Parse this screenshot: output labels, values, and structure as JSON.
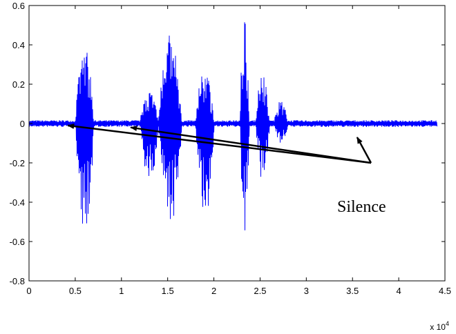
{
  "chart_data": {
    "type": "line",
    "title": "",
    "xlabel": "",
    "ylabel": "",
    "xlim": [
      0,
      45000
    ],
    "ylim": [
      -0.8,
      0.6
    ],
    "x_ticks": [
      0,
      5000,
      10000,
      15000,
      20000,
      25000,
      30000,
      35000,
      40000,
      45000
    ],
    "x_tick_labels": [
      "0",
      "0.5",
      "1",
      "1.5",
      "2",
      "2.5",
      "3",
      "3.5",
      "4",
      "4.5"
    ],
    "x_multiplier": {
      "base": "x 10",
      "exponent": "4"
    },
    "y_ticks": [
      0.6,
      0.4,
      0.2,
      0,
      -0.2,
      -0.4,
      -0.6,
      -0.8
    ],
    "y_tick_labels": [
      "0.6",
      "0.4",
      "0.2",
      "0",
      "-0.2",
      "-0.4",
      "-0.6",
      "-0.8"
    ],
    "grid": false,
    "line_color": "#0000ff",
    "x_end": 44100,
    "noise_amplitude": 0.012,
    "segments": [
      {
        "start": 5000,
        "end": 7000,
        "max": 0.4,
        "min": -0.56
      },
      {
        "start": 12000,
        "end": 14000,
        "max": 0.18,
        "min": -0.3
      },
      {
        "start": 14000,
        "end": 16500,
        "max": 0.45,
        "min": -0.52
      },
      {
        "start": 18000,
        "end": 20000,
        "max": 0.28,
        "min": -0.5
      },
      {
        "start": 22800,
        "end": 23800,
        "max": 0.59,
        "min": -0.6
      },
      {
        "start": 24500,
        "end": 26000,
        "max": 0.26,
        "min": -0.3
      },
      {
        "start": 26500,
        "end": 28000,
        "max": 0.12,
        "min": -0.1
      }
    ],
    "annotation": {
      "text": "Silence",
      "source": {
        "x": 37000,
        "y": -0.2
      },
      "targets": [
        {
          "x": 4200,
          "y": -0.01
        },
        {
          "x": 11000,
          "y": -0.02
        },
        {
          "x": 35500,
          "y": -0.07
        }
      ]
    }
  }
}
